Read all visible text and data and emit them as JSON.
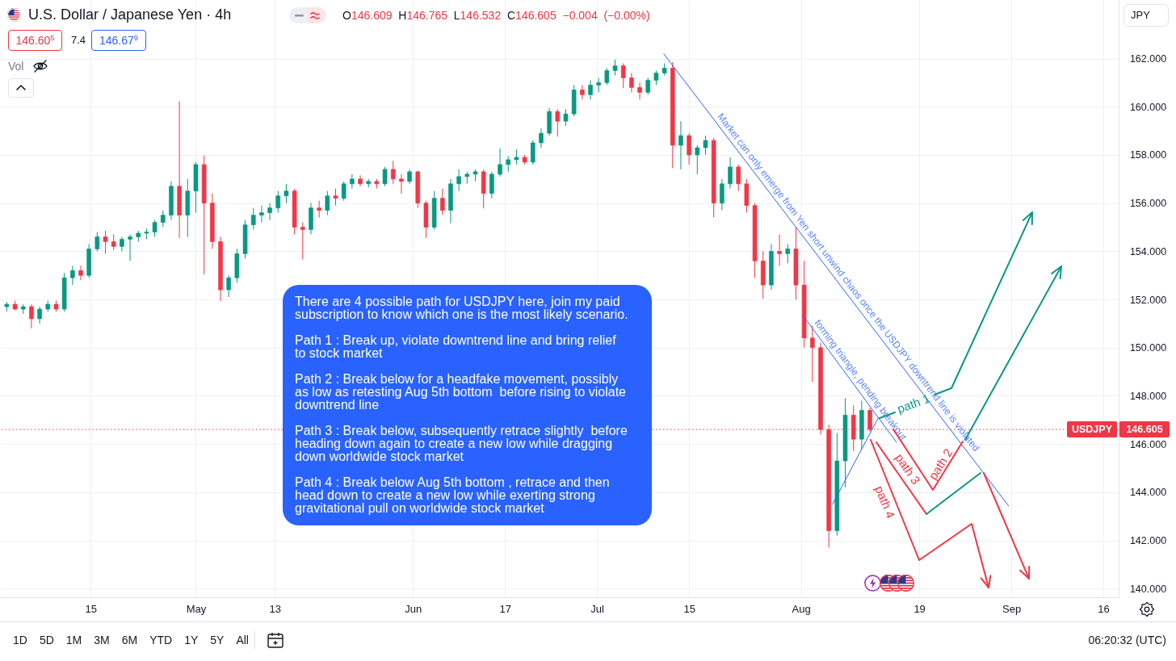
{
  "chart_data": {
    "type": "candlestick",
    "title": "U.S. Dollar / Japanese Yen · 4h",
    "x": [
      "--04-02T06:00",
      "--04-03T12:00",
      "--04-04T18:00",
      "--04-06T00:00",
      "--04-07T06:00",
      "--04-08T12:00",
      "--04-09T18:00",
      "--04-11T00:00",
      "--04-12T06:00",
      "--04-13T12:00",
      "--04-14T18:00",
      "--04-16T00:00",
      "--04-17T06:00",
      "--04-18T12:00",
      "--04-19T18:00",
      "--04-21T00:00",
      "--04-22T06:00",
      "--04-23T12:00",
      "--04-24T18:00",
      "--04-26T00:00",
      "--04-27T06:00",
      "--04-28T12:00",
      "--04-29T18:00",
      "--05-01T00:00",
      "--05-02T06:00",
      "--05-03T12:00",
      "--05-04T18:00",
      "--05-06T00:00",
      "--05-07T06:00",
      "--05-08T12:00",
      "--05-09T18:00",
      "--05-11T00:00",
      "--05-12T06:00",
      "--05-13T12:00",
      "--05-14T18:00",
      "--05-16T00:00",
      "--05-17T06:00",
      "--05-18T12:00",
      "--05-19T18:00",
      "--05-21T00:00",
      "--05-22T06:00",
      "--05-23T12:00",
      "--05-24T18:00",
      "--05-26T00:00",
      "--05-27T06:00",
      "--05-28T12:00",
      "--05-29T18:00",
      "--05-31T00:00",
      "--06-01T06:00",
      "--06-02T12:00",
      "--06-03T18:00",
      "--06-05T00:00",
      "--06-06T06:00",
      "--06-07T12:00",
      "--06-08T18:00",
      "--06-10T00:00",
      "--06-11T06:00",
      "--06-12T12:00",
      "--06-13T18:00",
      "--06-15T00:00",
      "--06-16T06:00",
      "--06-17T12:00",
      "--06-18T18:00",
      "--06-20T00:00",
      "--06-21T06:00",
      "--06-22T12:00",
      "--06-23T18:00",
      "--06-25T00:00",
      "--06-26T06:00",
      "--06-27T12:00",
      "--06-28T18:00",
      "--06-30T00:00",
      "--07-01T06:00",
      "--07-02T12:00",
      "--07-03T18:00",
      "--07-05T00:00",
      "--07-06T06:00",
      "--07-07T12:00",
      "--07-08T18:00",
      "--07-10T00:00",
      "--07-11T06:00",
      "--07-12T12:00",
      "--07-13T18:00",
      "--07-15T00:00",
      "--07-16T06:00",
      "--07-17T12:00",
      "--07-18T18:00",
      "--07-20T00:00",
      "--07-21T06:00",
      "--07-22T12:00",
      "--07-23T18:00",
      "--07-25T00:00",
      "--07-26T06:00",
      "--07-27T12:00",
      "--07-28T18:00",
      "--07-30T00:00",
      "--07-31T06:00",
      "--08-01T12:00",
      "--08-02T18:00",
      "--08-04T00:00",
      "--08-05T06:00",
      "--08-06T12:00",
      "--08-07T18:00",
      "--08-09T00:00",
      "--08-10T06:00",
      "--08-11T12:00"
    ],
    "ohlc": [
      [
        151.7,
        151.9,
        151.5,
        151.8
      ],
      [
        151.8,
        151.95,
        151.55,
        151.6
      ],
      [
        151.6,
        151.8,
        151.4,
        151.7
      ],
      [
        151.7,
        151.8,
        150.8,
        151.2
      ],
      [
        151.2,
        151.7,
        151.0,
        151.6
      ],
      [
        151.6,
        151.95,
        151.5,
        151.8
      ],
      [
        151.8,
        151.95,
        151.5,
        151.6
      ],
      [
        151.6,
        153.1,
        151.5,
        152.9
      ],
      [
        152.9,
        153.4,
        152.6,
        153.2
      ],
      [
        153.2,
        153.4,
        152.8,
        153.0
      ],
      [
        153.0,
        154.3,
        152.9,
        154.1
      ],
      [
        154.1,
        154.8,
        154.0,
        154.6
      ],
      [
        154.6,
        154.85,
        153.9,
        154.4
      ],
      [
        154.4,
        154.7,
        154.05,
        154.2
      ],
      [
        154.2,
        154.6,
        154.0,
        154.5
      ],
      [
        154.5,
        154.7,
        153.6,
        154.6
      ],
      [
        154.6,
        154.85,
        154.4,
        154.75
      ],
      [
        154.75,
        154.95,
        154.5,
        154.8
      ],
      [
        154.8,
        155.3,
        154.6,
        155.2
      ],
      [
        155.2,
        155.7,
        155.0,
        155.5
      ],
      [
        155.5,
        156.9,
        155.3,
        156.7
      ],
      [
        156.7,
        160.22,
        154.55,
        155.5
      ],
      [
        155.5,
        157.0,
        154.6,
        156.5
      ],
      [
        156.5,
        157.7,
        155.6,
        157.6
      ],
      [
        157.6,
        157.98,
        153.04,
        156.0
      ],
      [
        156.0,
        156.4,
        154.1,
        154.4
      ],
      [
        154.4,
        154.6,
        151.93,
        152.4
      ],
      [
        152.4,
        153.0,
        152.1,
        152.9
      ],
      [
        152.9,
        154.1,
        152.7,
        153.9
      ],
      [
        153.9,
        155.3,
        153.7,
        155.1
      ],
      [
        155.1,
        155.8,
        154.9,
        155.5
      ],
      [
        155.5,
        155.9,
        155.2,
        155.6
      ],
      [
        155.6,
        156.0,
        155.3,
        155.8
      ],
      [
        155.8,
        156.5,
        155.6,
        156.3
      ],
      [
        156.3,
        156.8,
        156.0,
        156.5
      ],
      [
        156.5,
        156.6,
        154.7,
        155.0
      ],
      [
        155.0,
        155.2,
        153.66,
        154.9
      ],
      [
        154.9,
        156.0,
        154.7,
        155.8
      ],
      [
        155.8,
        156.1,
        155.4,
        155.7
      ],
      [
        155.7,
        156.5,
        155.5,
        156.3
      ],
      [
        156.3,
        156.6,
        155.9,
        156.2
      ],
      [
        156.2,
        156.9,
        156.1,
        156.8
      ],
      [
        156.8,
        157.2,
        156.6,
        157.0
      ],
      [
        157.0,
        157.15,
        156.7,
        156.8
      ],
      [
        156.8,
        157.0,
        156.65,
        156.9
      ],
      [
        156.9,
        157.0,
        156.6,
        156.8
      ],
      [
        156.8,
        157.5,
        156.7,
        157.4
      ],
      [
        157.4,
        157.75,
        156.8,
        157.0
      ],
      [
        157.0,
        157.2,
        156.39,
        156.9
      ],
      [
        156.9,
        157.4,
        156.8,
        157.3
      ],
      [
        157.3,
        157.35,
        155.8,
        156.0
      ],
      [
        156.0,
        156.1,
        154.55,
        155.0
      ],
      [
        155.0,
        156.5,
        154.9,
        156.2
      ],
      [
        156.2,
        156.6,
        155.5,
        155.7
      ],
      [
        155.7,
        157.0,
        155.16,
        156.8
      ],
      [
        156.8,
        157.4,
        156.5,
        157.1
      ],
      [
        157.1,
        157.3,
        156.8,
        157.2
      ],
      [
        157.2,
        157.4,
        156.9,
        157.3
      ],
      [
        157.3,
        157.4,
        155.78,
        156.4
      ],
      [
        156.4,
        157.3,
        156.2,
        157.2
      ],
      [
        157.2,
        158.27,
        157.1,
        157.6
      ],
      [
        157.6,
        157.95,
        157.3,
        157.8
      ],
      [
        157.8,
        158.23,
        157.6,
        157.9
      ],
      [
        157.9,
        158.0,
        157.6,
        157.7
      ],
      [
        157.7,
        158.6,
        157.6,
        158.5
      ],
      [
        158.5,
        159.1,
        158.3,
        158.9
      ],
      [
        158.9,
        159.95,
        158.8,
        159.8
      ],
      [
        159.8,
        159.9,
        158.76,
        159.4
      ],
      [
        159.4,
        159.9,
        159.2,
        159.7
      ],
      [
        159.7,
        160.9,
        159.6,
        160.7
      ],
      [
        160.7,
        160.9,
        160.3,
        160.5
      ],
      [
        160.5,
        161.1,
        160.3,
        160.9
      ],
      [
        160.9,
        161.2,
        160.6,
        161.0
      ],
      [
        161.0,
        161.6,
        160.9,
        161.5
      ],
      [
        161.5,
        161.95,
        161.3,
        161.7
      ],
      [
        161.7,
        161.8,
        160.77,
        161.2
      ],
      [
        161.2,
        161.4,
        160.6,
        160.8
      ],
      [
        160.8,
        161.0,
        160.3,
        160.6
      ],
      [
        160.6,
        161.2,
        160.5,
        161.1
      ],
      [
        161.1,
        161.5,
        160.9,
        161.4
      ],
      [
        161.4,
        161.8,
        161.3,
        161.6
      ],
      [
        161.6,
        161.85,
        157.45,
        158.4
      ],
      [
        158.4,
        159.4,
        157.4,
        158.8
      ],
      [
        158.8,
        158.9,
        157.6,
        158.0
      ],
      [
        158.0,
        158.4,
        157.2,
        158.3
      ],
      [
        158.3,
        158.8,
        158.0,
        158.6
      ],
      [
        158.6,
        158.7,
        155.41,
        156.0
      ],
      [
        156.0,
        157.0,
        155.7,
        156.8
      ],
      [
        156.8,
        157.9,
        156.6,
        157.5
      ],
      [
        157.5,
        157.6,
        156.5,
        156.8
      ],
      [
        156.8,
        157.0,
        155.6,
        155.9
      ],
      [
        155.9,
        156.0,
        152.9,
        153.6
      ],
      [
        153.6,
        154.0,
        152.04,
        152.6
      ],
      [
        152.6,
        154.3,
        152.4,
        154.0
      ],
      [
        154.0,
        154.7,
        153.4,
        153.9
      ],
      [
        153.9,
        154.3,
        153.5,
        154.1
      ],
      [
        154.1,
        155.0,
        152.0,
        152.6
      ],
      [
        152.6,
        153.6,
        150.0,
        150.4
      ],
      [
        150.4,
        150.9,
        148.58,
        150.0
      ],
      [
        150.0,
        150.2,
        146.4,
        146.6
      ],
      [
        146.6,
        146.8,
        141.7,
        142.4
      ],
      [
        142.4,
        146.45,
        142.2,
        145.3
      ],
      [
        145.3,
        147.9,
        144.2,
        147.2
      ],
      [
        147.2,
        147.6,
        145.7,
        146.2
      ],
      [
        146.2,
        147.8,
        145.8,
        147.4
      ],
      [
        147.4,
        147.5,
        146.5,
        146.605
      ]
    ],
    "colors": [
      "#089981",
      "#f23645",
      "#089981",
      "#f23645",
      "#089981",
      "#089981",
      "#f23645",
      "#089981",
      "#089981",
      "#f23645",
      "#089981",
      "#089981",
      "#f23645",
      "#f23645",
      "#089981",
      "#089981",
      "#089981",
      "#089981",
      "#089981",
      "#089981",
      "#089981",
      "#f23645",
      "#089981",
      "#089981",
      "#f23645",
      "#f23645",
      "#f23645",
      "#089981",
      "#089981",
      "#089981",
      "#089981",
      "#089981",
      "#089981",
      "#089981",
      "#089981",
      "#f23645",
      "#f23645",
      "#089981",
      "#f23645",
      "#089981",
      "#f23645",
      "#089981",
      "#089981",
      "#f23645",
      "#089981",
      "#f23645",
      "#089981",
      "#f23645",
      "#f23645",
      "#089981",
      "#f23645",
      "#f23645",
      "#089981",
      "#f23645",
      "#089981",
      "#089981",
      "#089981",
      "#089981",
      "#f23645",
      "#089981",
      "#089981",
      "#089981",
      "#089981",
      "#f23645",
      "#089981",
      "#089981",
      "#089981",
      "#f23645",
      "#089981",
      "#089981",
      "#f23645",
      "#089981",
      "#089981",
      "#089981",
      "#089981",
      "#f23645",
      "#f23645",
      "#f23645",
      "#089981",
      "#089981",
      "#089981",
      "#f23645",
      "#089981",
      "#f23645",
      "#089981",
      "#089981",
      "#f23645",
      "#089981",
      "#089981",
      "#f23645",
      "#f23645",
      "#f23645",
      "#f23645",
      "#089981",
      "#f23645",
      "#089981",
      "#f23645",
      "#f23645",
      "#f23645",
      "#f23645",
      "#f23645",
      "#089981",
      "#089981",
      "#f23645",
      "#089981",
      "#f23645"
    ],
    "xlim": [
      "--04-01T20:00",
      "--09-17T17:00"
    ],
    "xticks": [
      {
        "value": "--04-15",
        "label": "15"
      },
      {
        "value": "--05-01",
        "label": "May"
      },
      {
        "value": "--05-13",
        "label": "13"
      },
      {
        "value": "--06-03",
        "label": "Jun"
      },
      {
        "value": "--06-17",
        "label": "17"
      },
      {
        "value": "--07-01",
        "label": "Jul"
      },
      {
        "value": "--07-15",
        "label": "15"
      },
      {
        "value": "--08-01",
        "label": "Aug"
      },
      {
        "value": "--08-19",
        "label": "19"
      },
      {
        "value": "--09-02",
        "label": "Sep"
      },
      {
        "value": "--09-16",
        "label": "16"
      }
    ],
    "ylim": [
      139.64,
      164.43
    ],
    "yticks": [
      {
        "value": 140,
        "label": "140.000"
      },
      {
        "value": 142,
        "label": "142.000"
      },
      {
        "value": 144,
        "label": "144.000"
      },
      {
        "value": 146,
        "label": "146.000"
      },
      {
        "value": 148,
        "label": "148.000"
      },
      {
        "value": 150,
        "label": "150.000"
      },
      {
        "value": 152,
        "label": "152.000"
      },
      {
        "value": 154,
        "label": "154.000"
      },
      {
        "value": 156,
        "label": "156.000"
      },
      {
        "value": 158,
        "label": "158.000"
      },
      {
        "value": 160,
        "label": "160.000"
      },
      {
        "value": 162,
        "label": "162.000"
      }
    ],
    "grid": true,
    "ref_lines": [
      {
        "axis": "y",
        "value": 146.605,
        "label": "USDJPY",
        "color": "#f23645",
        "line_style": "dotted"
      }
    ],
    "series": [
      {
        "type": "line",
        "color": "#2962ff",
        "x": [
          "--07-11T04:00",
          "--09-01T14:00"
        ],
        "values": [
          162.19,
          143.43
        ]
      },
      {
        "type": "line",
        "color": "#2962ff",
        "x": [
          "--08-01T10:00",
          "--08-15T13:00"
        ],
        "values": [
          151.3,
          146.07
        ]
      },
      {
        "type": "line",
        "color": "#2962ff",
        "x": [
          "--08-05T19:00",
          "--08-12T18:00"
        ],
        "values": [
          143.49,
          147.08
        ]
      }
    ],
    "annotations": [
      "O146.609 H146.765 L146.532 C146.605 −0.004 (−0.00%)",
      "146.60$^{5}$",
      "7.4",
      "146.67$^{9}$",
      "Vol",
      "JPY",
      "There are 4 possible path for USDJPY here, join my paid\nsubscription to know which one is the most likely scenario.",
      "Path 1 : Break up, violate downtrend line and bring relief\nto stock market",
      "Path 2 : Break below for a headfake movement, possibly\nas low as retesting Aug 5th bottom  before rising to violate\ndowntrend line",
      "Path 3 : Break below, subsequently retrace slightly  before\nheading down again to create a new low while dragging\ndown worldwide stock market",
      "Path 4 : Break below Aug 5th bottom , retrace and then\nhead down to create a new low while exerting strong\ngravitational pull on worldwide stock market",
      {
        "text": "Market can only emerge from Yen short unwind chaos once the USDJPY downtrend line is violated",
        "x": "--08-07T06:00",
        "y": 152.51
      },
      {
        "text": "forming triangle, pending breakout",
        "x": "--08-09T02:00",
        "y": 148.46
      },
      "1D",
      "5D",
      "1M",
      "3M",
      "6M",
      "YTD",
      "1Y",
      "5Y",
      "All",
      "06:20:32 (UTC)",
      {
        "text": "path 1",
        "x": "--08-20T01:00",
        "y": 147.92
      },
      {
        "text": "path 2",
        "x": "--08-14T17:00",
        "y": 146.605
      },
      "path 3",
      "path 4",
      "146.605"
    ]
  }
}
